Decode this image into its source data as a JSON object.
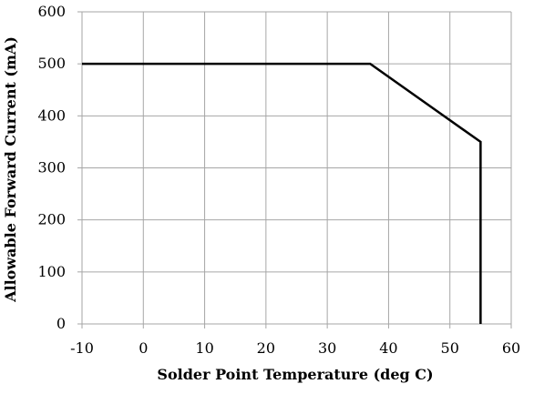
{
  "chart_data": {
    "type": "line",
    "title": "",
    "xlabel": "Solder Point Temperature (deg C)",
    "ylabel": "Allowable Forward Current (mA)",
    "xlim": [
      -10,
      60
    ],
    "ylim": [
      0,
      600
    ],
    "x_ticks": [
      -10,
      0,
      10,
      20,
      30,
      40,
      50,
      60
    ],
    "y_ticks": [
      0,
      100,
      200,
      300,
      400,
      500,
      600
    ],
    "x_tick_labels": [
      "-10",
      "0",
      "10",
      "20",
      "30",
      "40",
      "50",
      "60"
    ],
    "y_tick_labels": [
      "0",
      "100",
      "200",
      "300",
      "400",
      "500",
      "600"
    ],
    "grid": true,
    "legend": "none",
    "series": [
      {
        "points": [
          {
            "x": -10,
            "y": 500
          },
          {
            "x": 37,
            "y": 500
          },
          {
            "x": 55,
            "y": 350
          },
          {
            "x": 55,
            "y": 0
          }
        ],
        "color": "#000000"
      }
    ],
    "colors": {
      "grid": "#a6a6a6",
      "line": "#000000",
      "background": "#ffffff"
    }
  }
}
